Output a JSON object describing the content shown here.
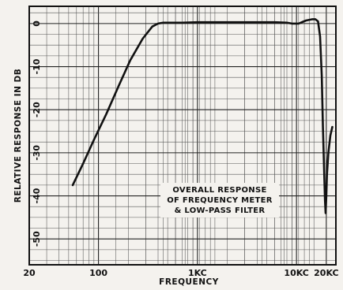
{
  "chart_data": {
    "type": "line",
    "title": "",
    "xlabel": "FREQUENCY",
    "ylabel": "RELATIVE RESPONSE IN DB",
    "x_scale": "log",
    "xlim": [
      20,
      25000
    ],
    "ylim": [
      -56,
      4
    ],
    "grid": true,
    "x_ticks": [
      {
        "value": 20,
        "label": "20"
      },
      {
        "value": 100,
        "label": "100"
      },
      {
        "value": 1000,
        "label": "1KC"
      },
      {
        "value": 10000,
        "label": "10KC"
      },
      {
        "value": 20000,
        "label": "20KC"
      }
    ],
    "y_ticks": [
      {
        "value": 0,
        "label": "0"
      },
      {
        "value": -10,
        "label": "-10"
      },
      {
        "value": -20,
        "label": "-20"
      },
      {
        "value": -30,
        "label": "-30"
      },
      {
        "value": -40,
        "label": "-40"
      },
      {
        "value": -50,
        "label": "-50"
      }
    ],
    "annotation": [
      "OVERALL RESPONSE",
      "OF FREQUENCY METER",
      "& LOW-PASS FILTER"
    ],
    "series": [
      {
        "x": [
          55,
          70,
          90,
          120,
          160,
          210,
          280,
          350,
          400,
          450,
          520,
          700,
          1000,
          2000,
          4000,
          6000,
          8000,
          9000,
          10500,
          12500,
          14500,
          15500,
          16500,
          17300,
          18000,
          18500,
          19000,
          19400,
          19700,
          20000,
          20300,
          21000,
          22000,
          23000
        ],
        "y": [
          -37.5,
          -32.5,
          -27,
          -21,
          -14.5,
          -8.5,
          -3.5,
          -0.7,
          0,
          0.2,
          0.2,
          0.2,
          0.3,
          0.3,
          0.3,
          0.3,
          0.2,
          0,
          0,
          0.7,
          1,
          1,
          0.5,
          -3,
          -12,
          -24,
          -34,
          -41,
          -44,
          -40,
          -35,
          -30,
          -26,
          -24
        ]
      }
    ]
  }
}
